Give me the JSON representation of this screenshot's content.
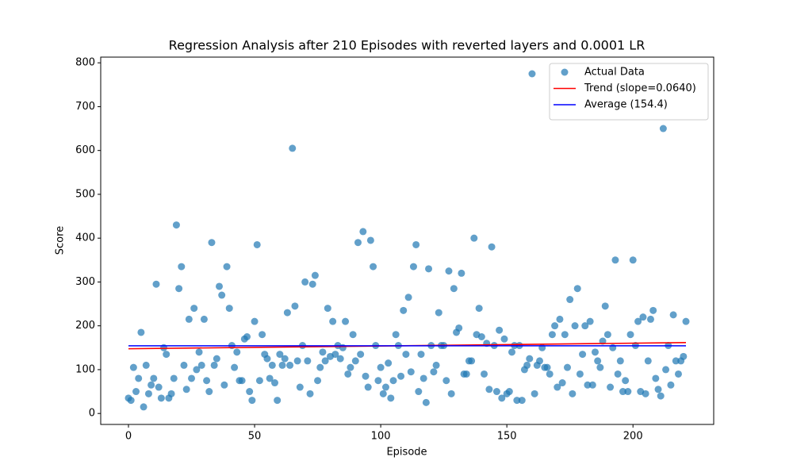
{
  "chart_data": {
    "type": "scatter",
    "title": "Regression Analysis after 210 Episodes with reverted layers and 0.0001 LR",
    "x_label": "Episode",
    "y_label": "Score",
    "xlim": [
      -11,
      232
    ],
    "ylim": [
      -25,
      813
    ],
    "xticks": [
      0,
      50,
      100,
      150,
      200
    ],
    "yticks": [
      0,
      100,
      200,
      300,
      400,
      500,
      600,
      700,
      800
    ],
    "grid": false,
    "legend": "upper right",
    "series": [
      {
        "name": "Actual Data",
        "kind": "scatter",
        "color": "#1f77b4",
        "x": [
          0,
          1,
          2,
          3,
          4,
          5,
          6,
          7,
          8,
          9,
          10,
          11,
          12,
          13,
          14,
          15,
          16,
          17,
          18,
          19,
          20,
          21,
          22,
          23,
          24,
          25,
          26,
          27,
          28,
          29,
          30,
          31,
          32,
          33,
          34,
          35,
          36,
          37,
          38,
          39,
          40,
          41,
          42,
          43,
          44,
          45,
          46,
          47,
          48,
          49,
          50,
          51,
          52,
          53,
          54,
          55,
          56,
          57,
          58,
          59,
          60,
          61,
          62,
          63,
          64,
          65,
          66,
          67,
          68,
          69,
          70,
          71,
          72,
          73,
          74,
          75,
          76,
          77,
          78,
          79,
          80,
          81,
          82,
          83,
          84,
          85,
          86,
          87,
          88,
          89,
          90,
          91,
          92,
          93,
          94,
          95,
          96,
          97,
          98,
          99,
          100,
          101,
          102,
          103,
          104,
          105,
          106,
          107,
          108,
          109,
          110,
          111,
          112,
          113,
          114,
          115,
          116,
          117,
          118,
          119,
          120,
          121,
          122,
          123,
          124,
          125,
          126,
          127,
          128,
          129,
          130,
          131,
          132,
          133,
          134,
          135,
          136,
          137,
          138,
          139,
          140,
          141,
          142,
          143,
          144,
          145,
          146,
          147,
          148,
          149,
          150,
          151,
          152,
          153,
          154,
          155,
          156,
          157,
          158,
          159,
          160,
          161,
          162,
          163,
          164,
          165,
          166,
          167,
          168,
          169,
          170,
          171,
          172,
          173,
          174,
          175,
          176,
          177,
          178,
          179,
          180,
          181,
          182,
          183,
          184,
          185,
          186,
          187,
          188,
          189,
          190,
          191,
          192,
          193,
          194,
          195,
          196,
          197,
          198,
          199,
          200,
          201,
          202,
          203,
          204,
          205,
          206,
          207,
          208,
          209,
          210,
          211,
          212,
          213,
          214,
          215,
          216,
          217,
          218,
          219,
          220,
          221
        ],
        "values": [
          35,
          30,
          105,
          50,
          80,
          185,
          15,
          110,
          45,
          65,
          80,
          295,
          60,
          35,
          150,
          135,
          35,
          45,
          80,
          430,
          285,
          335,
          110,
          55,
          215,
          80,
          240,
          100,
          140,
          110,
          215,
          75,
          50,
          390,
          110,
          125,
          290,
          270,
          65,
          335,
          240,
          155,
          105,
          140,
          75,
          75,
          170,
          175,
          50,
          30,
          210,
          385,
          75,
          180,
          135,
          125,
          80,
          110,
          70,
          30,
          135,
          110,
          125,
          230,
          110,
          605,
          245,
          120,
          60,
          155,
          300,
          120,
          45,
          295,
          315,
          75,
          105,
          140,
          120,
          240,
          130,
          210,
          135,
          155,
          125,
          150,
          210,
          90,
          105,
          180,
          120,
          390,
          135,
          415,
          85,
          60,
          395,
          335,
          155,
          75,
          105,
          45,
          60,
          115,
          35,
          75,
          180,
          155,
          85,
          235,
          135,
          265,
          95,
          335,
          385,
          50,
          135,
          80,
          25,
          330,
          155,
          95,
          110,
          230,
          155,
          155,
          75,
          325,
          45,
          285,
          185,
          195,
          320,
          90,
          90,
          120,
          120,
          400,
          180,
          240,
          175,
          90,
          160,
          55,
          380,
          155,
          50,
          190,
          35,
          170,
          45,
          50,
          140,
          155,
          30,
          155,
          30,
          100,
          110,
          125,
          775,
          45,
          110,
          120,
          150,
          105,
          105,
          90,
          180,
          200,
          60,
          215,
          70,
          180,
          105,
          260,
          45,
          200,
          285,
          90,
          135,
          200,
          65,
          210,
          65,
          140,
          120,
          105,
          165,
          245,
          180,
          60,
          150,
          350,
          90,
          120,
          50,
          75,
          50,
          180,
          350,
          155,
          210,
          50,
          220,
          45,
          120,
          215,
          235,
          80,
          55,
          40,
          650,
          100,
          155,
          65,
          225,
          120,
          90,
          120,
          130,
          210
        ]
      },
      {
        "name": "Trend (slope=0.0640)",
        "kind": "line",
        "color": "#ff0000",
        "x": [
          0,
          221
        ],
        "values": [
          147.6,
          161.7
        ]
      },
      {
        "name": "Average (154.4)",
        "kind": "line",
        "color": "#0000ff",
        "x": [
          0,
          221
        ],
        "values": [
          154.4,
          154.4
        ]
      }
    ]
  }
}
